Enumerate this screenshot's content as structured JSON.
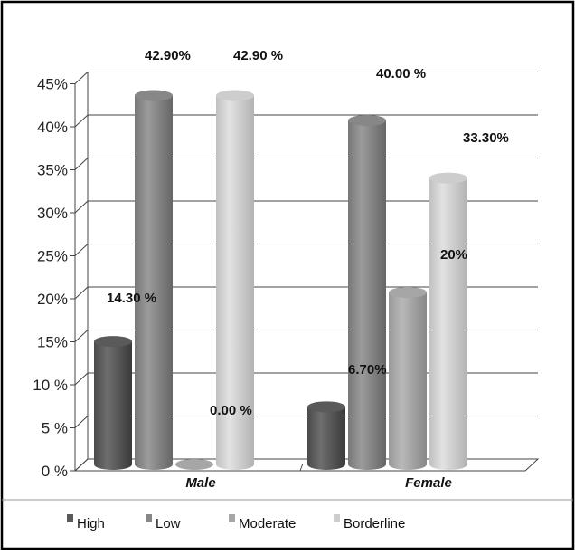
{
  "chart_data": {
    "type": "bar",
    "categories": [
      "Male",
      "Female"
    ],
    "series": [
      {
        "name": "High",
        "values": [
          14.3,
          6.7
        ],
        "labels": [
          "14.30 %",
          "6.70%"
        ],
        "color": "#5a5a5a"
      },
      {
        "name": "Low",
        "values": [
          42.9,
          40.0
        ],
        "labels": [
          "42.90%",
          "40.00 %"
        ],
        "color": "#878787"
      },
      {
        "name": "Moderate",
        "values": [
          0.0,
          20.0
        ],
        "labels": [
          "0.00 %",
          "20%"
        ],
        "color": "#a6a6a6"
      },
      {
        "name": "Borderline",
        "values": [
          42.9,
          33.3
        ],
        "labels": [
          "42.90 %",
          "33.30%"
        ],
        "color": "#cdcdcd"
      }
    ],
    "y_ticks": [
      "0 %",
      "5 %",
      "10 %",
      "15%",
      "20%",
      "25%",
      "30%",
      "35%",
      "40%",
      "45%"
    ],
    "ylim": [
      0,
      45
    ],
    "grid": true,
    "legend_position": "bottom",
    "style": "3d-cylinder"
  }
}
